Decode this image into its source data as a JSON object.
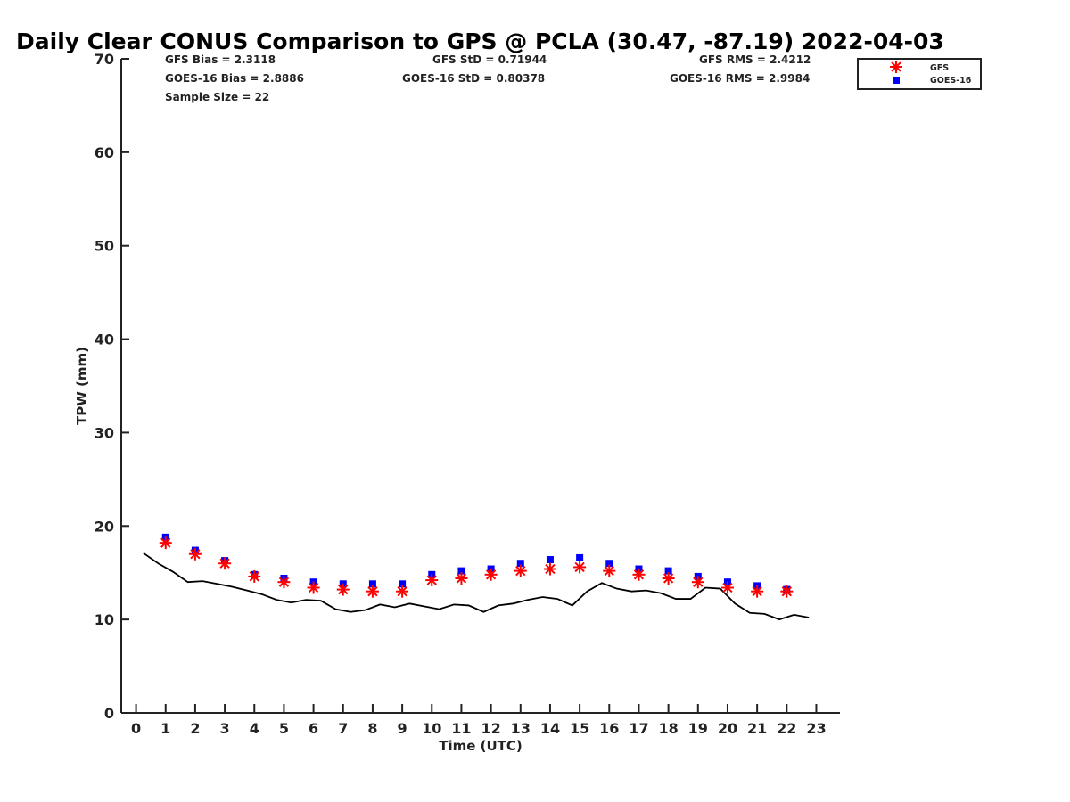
{
  "chart_data": {
    "type": "scatter",
    "title": "Daily Clear CONUS Comparison to GPS @ PCLA (30.47, -87.19) 2022-04-03",
    "xlabel": "Time (UTC)",
    "ylabel": "TPW (mm)",
    "xlim": [
      -0.5,
      23.8
    ],
    "ylim": [
      0,
      70
    ],
    "x_ticks": [
      "0",
      "1",
      "2",
      "3",
      "4",
      "5",
      "6",
      "7",
      "8",
      "9",
      "10",
      "11",
      "12",
      "13",
      "14",
      "15",
      "16",
      "17",
      "18",
      "19",
      "20",
      "21",
      "22",
      "23"
    ],
    "y_ticks": [
      "0",
      "10",
      "20",
      "30",
      "40",
      "50",
      "60",
      "70"
    ],
    "grid": false,
    "legend_position": "top-right, outside plot",
    "stats": {
      "gfs_bias": "GFS Bias = 2.3118",
      "goes_bias": "GOES-16 Bias = 2.8886",
      "sample_size": "Sample Size = 22",
      "gfs_std": "GFS StD = 0.71944",
      "goes_std": "GOES-16 StD = 0.80378",
      "gfs_rms": "GFS RMS = 2.4212",
      "goes_rms": "GOES-16 RMS = 2.9984"
    },
    "series": [
      {
        "name": "GFS",
        "marker": "asterisk",
        "color": "#ff0000",
        "x": [
          1,
          2,
          3,
          4,
          5,
          6,
          7,
          8,
          9,
          10,
          11,
          12,
          13,
          14,
          15,
          16,
          17,
          18,
          19,
          20,
          21,
          22
        ],
        "y": [
          18.2,
          17.0,
          16.0,
          14.6,
          14.0,
          13.4,
          13.2,
          13.0,
          13.0,
          14.2,
          14.4,
          14.8,
          15.2,
          15.4,
          15.6,
          15.2,
          14.8,
          14.4,
          14.0,
          13.4,
          13.0,
          13.0
        ]
      },
      {
        "name": "GOES-16",
        "marker": "square",
        "color": "#0000ff",
        "x": [
          1,
          2,
          3,
          4,
          5,
          6,
          7,
          8,
          9,
          10,
          11,
          12,
          13,
          14,
          15,
          16,
          17,
          18,
          19,
          20,
          21,
          22
        ],
        "y": [
          18.8,
          17.4,
          16.3,
          14.8,
          14.4,
          14.0,
          13.8,
          13.8,
          13.8,
          14.8,
          15.2,
          15.4,
          16.0,
          16.4,
          16.6,
          16.0,
          15.4,
          15.2,
          14.6,
          14.0,
          13.6,
          13.2
        ]
      },
      {
        "name": "GPS",
        "marker": "line",
        "color": "#000000",
        "x": [
          0.25,
          0.75,
          1.25,
          1.75,
          2.25,
          2.75,
          3.25,
          3.75,
          4.25,
          4.75,
          5.25,
          5.75,
          6.25,
          6.75,
          7.25,
          7.75,
          8.25,
          8.75,
          9.25,
          9.75,
          10.25,
          10.75,
          11.25,
          11.75,
          12.25,
          12.75,
          13.25,
          13.75,
          14.25,
          14.75,
          15.25,
          15.75,
          16.25,
          16.75,
          17.25,
          17.75,
          18.25,
          18.75,
          19.25,
          19.75,
          20.25,
          20.75,
          21.25,
          21.75,
          22.25,
          22.75
        ],
        "y": [
          17.1,
          16.0,
          15.1,
          14.0,
          14.1,
          13.8,
          13.5,
          13.1,
          12.7,
          12.1,
          11.8,
          12.1,
          12.0,
          11.1,
          10.8,
          11.0,
          11.6,
          11.3,
          11.7,
          11.4,
          11.1,
          11.6,
          11.5,
          10.8,
          11.5,
          11.7,
          12.1,
          12.4,
          12.2,
          11.5,
          13.0,
          13.9,
          13.3,
          13.0,
          13.1,
          12.8,
          12.2,
          12.2,
          13.4,
          13.3,
          11.7,
          10.7,
          10.6,
          10.0,
          10.5,
          10.2
        ]
      }
    ]
  }
}
